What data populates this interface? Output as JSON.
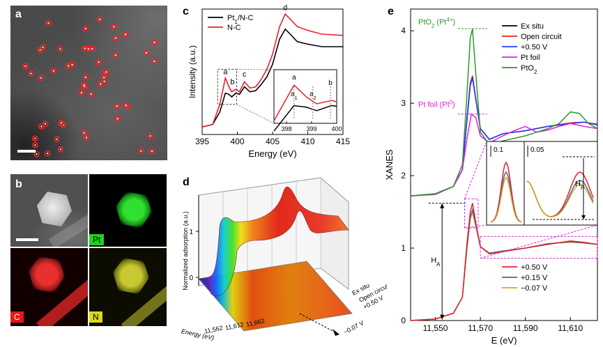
{
  "panels": {
    "a": {
      "label": "a"
    },
    "b": {
      "label": "b",
      "maps": {
        "pt": "Pt",
        "c": "C",
        "n": "N"
      }
    },
    "c": {
      "label": "c"
    },
    "d": {
      "label": "d"
    },
    "e": {
      "label": "e"
    }
  },
  "colors": {
    "black": "#000000",
    "red": "#e8202a",
    "blue": "#1f3cff",
    "magenta": "#e020e0",
    "green": "#2a9a2a",
    "steel": "#3f6e96",
    "orange": "#e0a020",
    "pt_map": "#20d020",
    "c_map": "#e81818",
    "n_map": "#d8d818"
  },
  "chart_data": [
    {
      "id": "c",
      "type": "line",
      "xlabel": "Energy (eV)",
      "ylabel": "Intensity (a.u.)",
      "xlim": [
        395,
        415
      ],
      "xticks": [
        395,
        400,
        405,
        410,
        415
      ],
      "legend": [
        "Pt1/N-C",
        "N-C"
      ],
      "series": [
        {
          "name": "Pt1/N-C",
          "color": "#000000",
          "x": [
            395,
            396.5,
            397.5,
            398.3,
            398.8,
            399.2,
            399.8,
            400.3,
            401,
            401.8,
            402.6,
            403.4,
            404.2,
            405,
            406,
            406.8,
            407.5,
            408.5,
            410,
            412,
            415
          ],
          "y": [
            0.06,
            0.08,
            0.18,
            0.33,
            0.32,
            0.3,
            0.33,
            0.32,
            0.38,
            0.34,
            0.35,
            0.4,
            0.46,
            0.56,
            0.76,
            0.84,
            0.8,
            0.74,
            0.72,
            0.7,
            0.7
          ]
        },
        {
          "name": "N-C",
          "color": "#e8202a",
          "x": [
            395,
            396.5,
            397.5,
            398.3,
            398.8,
            399.2,
            399.8,
            400.3,
            401,
            401.8,
            402.6,
            403.4,
            404.2,
            405,
            406,
            406.8,
            407.5,
            408.5,
            410,
            412,
            415
          ],
          "y": [
            0.06,
            0.08,
            0.24,
            0.45,
            0.38,
            0.34,
            0.36,
            0.34,
            0.42,
            0.37,
            0.38,
            0.44,
            0.52,
            0.64,
            0.86,
            0.96,
            0.92,
            0.86,
            0.83,
            0.8,
            0.79
          ]
        }
      ],
      "peak_labels": [
        "a",
        "b",
        "c",
        "d"
      ],
      "inset": {
        "xlim": [
          397.5,
          400
        ],
        "xticks": [
          398,
          399,
          400
        ],
        "labels": [
          "a",
          "b",
          "a1",
          "a2",
          "b"
        ]
      }
    },
    {
      "id": "d",
      "type": "area",
      "zlabel": "Normalized adsorption (a.u.)",
      "xlabel": "Energy (eV)",
      "zticks": [
        "0",
        "1"
      ],
      "energy_ticks": [
        "11,562",
        "11,612",
        "11,662"
      ],
      "conditions": [
        "Ex situ",
        "Open circuit",
        "+0.50 V",
        "−0.07 V"
      ]
    },
    {
      "id": "e",
      "type": "line",
      "xlabel": "E (eV)",
      "ylabel": "XANES",
      "xlim": [
        11539,
        11622
      ],
      "ylim": [
        0,
        4.3
      ],
      "xticks": [
        11550,
        11570,
        11590,
        11610
      ],
      "xticklabels": [
        "11,550",
        "11,570",
        "11,590",
        "11,610"
      ],
      "yticks": [
        0,
        1,
        2,
        3,
        4
      ],
      "offset": 1.1,
      "upper_series": [
        {
          "name": "Ex situ",
          "color": "#000000",
          "x": [
            11539,
            11550,
            11558,
            11562,
            11564,
            11565.5,
            11566.5,
            11568,
            11570,
            11574,
            11580,
            11590,
            11600,
            11610,
            11616,
            11622
          ],
          "y": [
            0.62,
            0.65,
            0.75,
            0.98,
            1.65,
            2.15,
            2.25,
            1.95,
            1.55,
            1.4,
            1.48,
            1.52,
            1.58,
            1.62,
            1.64,
            1.6
          ]
        },
        {
          "name": "Open circuit",
          "color": "#e8202a",
          "x": [
            11539,
            11550,
            11558,
            11562,
            11564,
            11565.5,
            11566.5,
            11568,
            11570,
            11574,
            11580,
            11590,
            11600,
            11610,
            11616,
            11622
          ],
          "y": [
            0.62,
            0.65,
            0.75,
            0.98,
            1.68,
            2.18,
            2.28,
            1.96,
            1.55,
            1.4,
            1.48,
            1.52,
            1.58,
            1.63,
            1.64,
            1.61
          ]
        },
        {
          "name": "+0.50 V",
          "color": "#1f3cff",
          "x": [
            11539,
            11550,
            11558,
            11562,
            11564,
            11565.5,
            11566.5,
            11568,
            11570,
            11574,
            11580,
            11590,
            11600,
            11610,
            11616,
            11622
          ],
          "y": [
            0.62,
            0.65,
            0.75,
            0.98,
            1.66,
            2.16,
            2.26,
            1.95,
            1.55,
            1.4,
            1.48,
            1.52,
            1.58,
            1.62,
            1.64,
            1.6
          ]
        },
        {
          "name": "Pt foil",
          "color": "#e020e0",
          "x": [
            11539,
            11550,
            11558,
            11562,
            11564,
            11566,
            11568,
            11570,
            11574,
            11580,
            11585,
            11590,
            11595,
            11600,
            11605,
            11610,
            11616,
            11622
          ],
          "y": [
            0.62,
            0.64,
            0.75,
            0.98,
            1.4,
            1.75,
            1.7,
            1.45,
            1.35,
            1.45,
            1.52,
            1.58,
            1.5,
            1.53,
            1.58,
            1.62,
            1.58,
            1.55
          ]
        },
        {
          "name": "PtO2",
          "color": "#2a9a2a",
          "x": [
            11539,
            11550,
            11558,
            11562,
            11564,
            11565.5,
            11566.5,
            11568,
            11570,
            11574,
            11580,
            11590,
            11600,
            11605,
            11610,
            11614,
            11618,
            11622
          ],
          "y": [
            0.62,
            0.65,
            0.75,
            1.05,
            2.0,
            2.8,
            2.93,
            2.3,
            1.5,
            1.33,
            1.38,
            1.45,
            1.55,
            1.62,
            1.78,
            1.76,
            1.62,
            1.55
          ]
        }
      ],
      "lower_series": [
        {
          "name": "+0.50 V",
          "color": "#e8202a",
          "x": [
            11539,
            11550,
            11558,
            11562,
            11564,
            11565.5,
            11566.5,
            11568,
            11570,
            11574,
            11580,
            11590,
            11600,
            11610,
            11616,
            11622
          ],
          "y": [
            0.0,
            0.02,
            0.1,
            0.32,
            1.05,
            1.5,
            1.62,
            1.35,
            1.02,
            0.92,
            0.95,
            1.0,
            1.05,
            1.1,
            1.08,
            1.05
          ]
        },
        {
          "name": "+0.15 V",
          "color": "#3f6e96",
          "x": [
            11539,
            11550,
            11558,
            11562,
            11564,
            11565.5,
            11566.5,
            11568,
            11570,
            11574,
            11580,
            11590,
            11600,
            11610,
            11616,
            11622
          ],
          "y": [
            0.0,
            0.02,
            0.1,
            0.32,
            1.0,
            1.43,
            1.53,
            1.32,
            1.02,
            0.93,
            0.96,
            1.0,
            1.06,
            1.09,
            1.07,
            1.05
          ]
        },
        {
          "name": "−0.07 V",
          "color": "#e0a020",
          "x": [
            11539,
            11550,
            11558,
            11562,
            11564,
            11565.5,
            11566.5,
            11568,
            11570,
            11574,
            11580,
            11590,
            11600,
            11610,
            11616,
            11622
          ],
          "y": [
            0.0,
            0.02,
            0.1,
            0.32,
            0.97,
            1.4,
            1.49,
            1.3,
            1.02,
            0.93,
            0.96,
            1.0,
            1.06,
            1.08,
            1.07,
            1.05
          ]
        }
      ],
      "annotations": {
        "pto2": "PtO2 (Pt4+)",
        "ptfoil": "Pt foil (Pt0)",
        "ha": "HA",
        "hp": "HP",
        "inset_scale_left": "0.1",
        "inset_scale_right": "0.05"
      }
    }
  ]
}
